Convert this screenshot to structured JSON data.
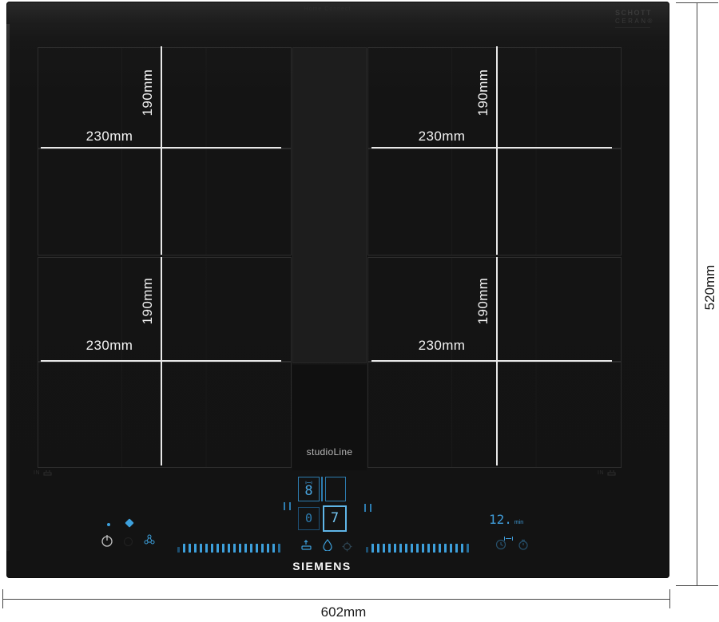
{
  "branding": {
    "top_center_label": "Home Connect",
    "glass_logo_line1": "SCHOTT",
    "glass_logo_line2": "CERAN®",
    "studioline": "studioLine",
    "manufacturer": "SIEMENS"
  },
  "dimensions": {
    "overall_width": "602mm",
    "overall_height": "520mm",
    "zones": [
      {
        "position": "top-left",
        "width": "230mm",
        "height": "190mm"
      },
      {
        "position": "bottom-left",
        "width": "230mm",
        "height": "190mm"
      },
      {
        "position": "top-right",
        "width": "230mm",
        "height": "190mm"
      },
      {
        "position": "bottom-right",
        "width": "230mm",
        "height": "190mm"
      }
    ]
  },
  "glass_marks": {
    "left": "IN",
    "right": "IN"
  },
  "display": {
    "zone_top_left": "8",
    "zone_top_right": "",
    "zone_bottom_left": "0",
    "zone_bottom_right": "7",
    "timer_value": "12.",
    "timer_unit": "min"
  },
  "sliders": {
    "left_ticks": 19,
    "right_ticks": 19
  },
  "icons": {
    "power": "power-symbol",
    "fan": "diamond-fan",
    "connectivity": "molecule",
    "pan_move": "pan-with-arrow",
    "cleaning": "droplet",
    "settings": "gear",
    "timer_clock": "clock",
    "bridge": "flex-bridge"
  },
  "colors": {
    "accent_blue": "#3da0dc",
    "accent_blue_bright": "#73c5f2",
    "accent_blue_dim": "#2d7cb0",
    "measure_line": "#e8e8e8",
    "glass_black": "#141414"
  }
}
